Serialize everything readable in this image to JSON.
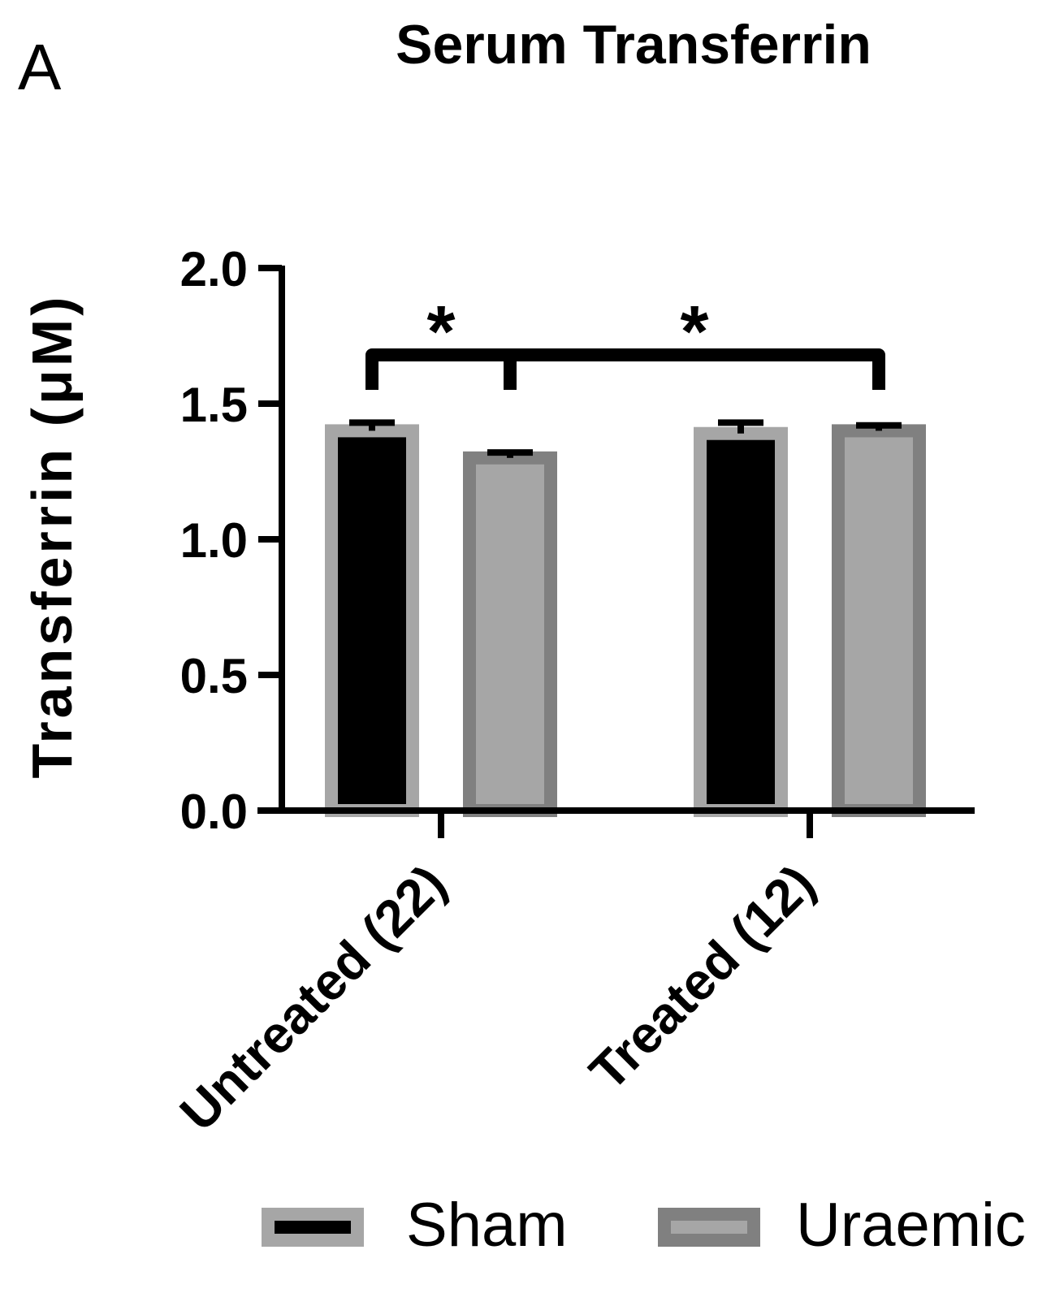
{
  "chart_data": {
    "type": "bar",
    "panel_label": "A",
    "title": "Serum Transferrin",
    "ylabel": "Transferrin (μM)",
    "xlabel": "",
    "ylim": [
      0,
      2.0
    ],
    "yticks": [
      "0.0",
      "0.5",
      "1.0",
      "1.5",
      "2.0"
    ],
    "categories": [
      "Untreated (22)",
      "Treated (12)"
    ],
    "series": [
      {
        "name": "Sham",
        "values": [
          1.4,
          1.39
        ],
        "errors": [
          0.03,
          0.04
        ],
        "color": "#000000",
        "outline": "#a6a6a6"
      },
      {
        "name": "Uraemic",
        "values": [
          1.3,
          1.4
        ],
        "errors": [
          0.02,
          0.02
        ],
        "color": "#a6a6a6",
        "outline": "#808080"
      }
    ],
    "significance": [
      {
        "label": "*",
        "from": [
          0,
          0
        ],
        "to": [
          0,
          1
        ]
      },
      {
        "label": "*",
        "from": [
          0,
          1
        ],
        "to": [
          1,
          1
        ]
      }
    ],
    "legend_position": "bottom",
    "grid": false
  }
}
